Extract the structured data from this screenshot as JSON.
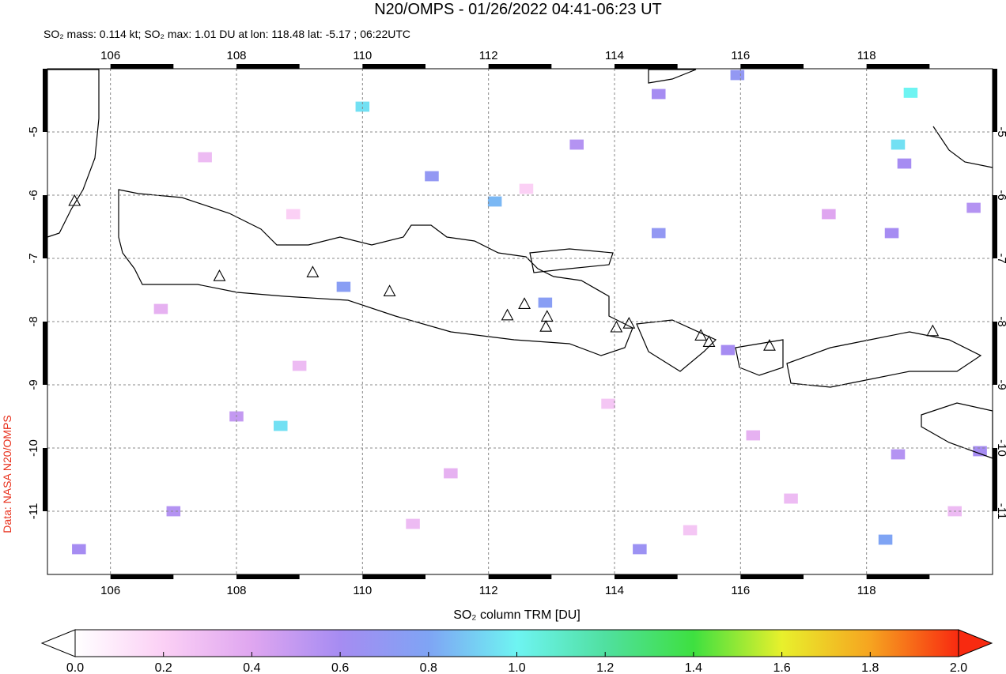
{
  "chart_data": {
    "type": "map",
    "title": "N20/OMPS - 01/26/2022 04:41-06:23 UT",
    "subtitle": "SO₂ mass: 0.114 kt; SO₂ max: 1.01 DU at lon: 118.48 lat: -5.17 ; 06:22UTC",
    "credit": "Data: NASA N20/OMPS",
    "xlim": [
      105,
      120
    ],
    "ylim": [
      -12,
      -4
    ],
    "xticks": [
      106,
      108,
      110,
      112,
      114,
      116,
      118
    ],
    "yticks": [
      -5,
      -6,
      -7,
      -8,
      -9,
      -10,
      -11
    ],
    "grid": true,
    "volcanoes": [
      [
        105.43,
        -6.1
      ],
      [
        107.73,
        -7.29
      ],
      [
        109.21,
        -7.23
      ],
      [
        110.43,
        -7.53
      ],
      [
        112.3,
        -7.91
      ],
      [
        112.57,
        -7.73
      ],
      [
        112.93,
        -7.93
      ],
      [
        112.91,
        -8.09
      ],
      [
        114.03,
        -8.1
      ],
      [
        114.23,
        -8.04
      ],
      [
        115.37,
        -8.23
      ],
      [
        115.5,
        -8.33
      ],
      [
        116.46,
        -8.39
      ],
      [
        119.05,
        -8.16
      ]
    ],
    "pixels": [
      [
        118.7,
        -4.38,
        1.0
      ],
      [
        118.5,
        -5.2,
        0.95
      ],
      [
        118.6,
        -5.5,
        0.6
      ],
      [
        119.7,
        -6.2,
        0.55
      ],
      [
        118.4,
        -6.6,
        0.6
      ],
      [
        110.0,
        -4.6,
        0.95
      ],
      [
        112.1,
        -6.1,
        0.85
      ],
      [
        108.7,
        -9.65,
        0.95
      ],
      [
        118.3,
        -11.45,
        0.8
      ],
      [
        115.95,
        -4.1,
        0.7
      ],
      [
        114.7,
        -6.6,
        0.7
      ],
      [
        114.7,
        -4.4,
        0.6
      ],
      [
        111.1,
        -5.7,
        0.7
      ],
      [
        109.7,
        -7.45,
        0.75
      ],
      [
        112.9,
        -7.7,
        0.75
      ],
      [
        119.8,
        -10.05,
        0.6
      ],
      [
        118.5,
        -10.1,
        0.55
      ],
      [
        115.8,
        -8.45,
        0.6
      ],
      [
        114.4,
        -11.6,
        0.65
      ],
      [
        107.0,
        -11.0,
        0.55
      ],
      [
        105.5,
        -11.6,
        0.6
      ],
      [
        108.0,
        -9.5,
        0.5
      ],
      [
        113.4,
        -5.2,
        0.55
      ],
      [
        117.4,
        -6.3,
        0.4
      ],
      [
        106.8,
        -7.8,
        0.35
      ],
      [
        109.0,
        -8.7,
        0.3
      ],
      [
        111.4,
        -10.4,
        0.35
      ],
      [
        116.8,
        -10.8,
        0.3
      ],
      [
        113.9,
        -9.3,
        0.25
      ],
      [
        107.5,
        -5.4,
        0.3
      ],
      [
        110.8,
        -11.2,
        0.3
      ],
      [
        115.2,
        -11.3,
        0.25
      ],
      [
        119.4,
        -11.0,
        0.3
      ],
      [
        112.6,
        -5.9,
        0.2
      ],
      [
        108.9,
        -6.3,
        0.2
      ],
      [
        116.2,
        -9.8,
        0.35
      ]
    ],
    "colorbar": {
      "label": "SO₂ column TRM [DU]",
      "range": [
        0,
        2
      ],
      "colors": [
        "#ffffff",
        "#fbd0f5",
        "#dfa6f0",
        "#a68cf2",
        "#7fa4f4",
        "#6ef4f2",
        "#50e0a0",
        "#3ee040",
        "#e8f02c",
        "#f6a420",
        "#f82a10"
      ],
      "ticks": [
        {
          "value": 0,
          "label": "0.0"
        },
        {
          "value": 0.2,
          "label": "0.2"
        },
        {
          "value": 0.4,
          "label": "0.4"
        },
        {
          "value": 0.6,
          "label": "0.6"
        },
        {
          "value": 0.8,
          "label": "0.8"
        },
        {
          "value": 1.0,
          "label": "1.0"
        },
        {
          "value": 1.2,
          "label": "1.2"
        },
        {
          "value": 1.4,
          "label": "1.4"
        },
        {
          "value": 1.6,
          "label": "1.6"
        },
        {
          "value": 1.8,
          "label": "1.8"
        },
        {
          "value": 2.0,
          "label": "2.0"
        }
      ]
    }
  }
}
